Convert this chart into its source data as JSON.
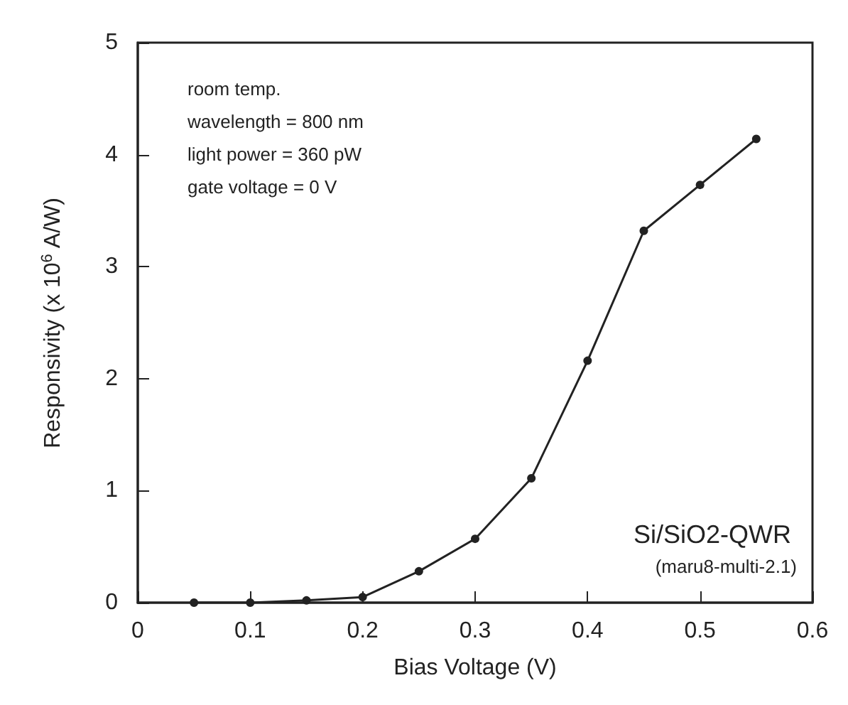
{
  "chart_data": {
    "type": "line",
    "xlabel": "Bias Voltage (V)",
    "ylabel": "Responsivity (x 10$^{6}$ A/W)",
    "x": [
      0.05,
      0.1,
      0.15,
      0.2,
      0.25,
      0.3,
      0.35,
      0.4,
      0.45,
      0.5,
      0.55
    ],
    "series": [
      {
        "color": "#222222",
        "values": [
          0,
          0,
          0.02,
          0.05,
          0.28,
          0.57,
          1.11,
          2.16,
          3.32,
          3.73,
          4.14
        ]
      }
    ],
    "xlim": [
      0,
      0.6
    ],
    "xticks": [
      0,
      0.1,
      0.2,
      0.3,
      0.4,
      0.5,
      0.6
    ],
    "ylim": [
      0,
      5
    ],
    "yticks": [
      0,
      1,
      2,
      3,
      4,
      5
    ],
    "marker": "circle",
    "line_style": "solid",
    "annotations": [
      "room temp.",
      "wavelength = 800 nm",
      "light power = 360 pW",
      "gate voltage = 0 V",
      "Si/SiO2-QWR",
      "(maru8-multi-2.1)"
    ]
  }
}
